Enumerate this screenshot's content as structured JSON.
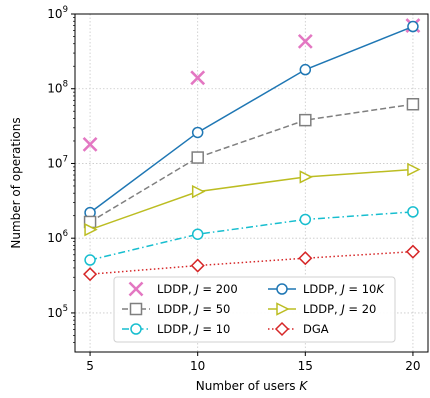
{
  "chart_data": {
    "type": "line",
    "xlabel_prefix": "Number of users ",
    "xlabel_var": "K",
    "ylabel": "Number of operations",
    "x": [
      5,
      10,
      15,
      20
    ],
    "x_ticks": [
      5,
      10,
      15,
      20
    ],
    "xlim": [
      4.3,
      20.7
    ],
    "y_scale": "log",
    "ylim": [
      30000,
      1000000000
    ],
    "y_ticks": [
      {
        "value": 100000,
        "base": "10",
        "exp": "5"
      },
      {
        "value": 1000000,
        "base": "10",
        "exp": "6"
      },
      {
        "value": 10000000,
        "base": "10",
        "exp": "7"
      },
      {
        "value": 100000000,
        "base": "10",
        "exp": "8"
      },
      {
        "value": 1000000000,
        "base": "10",
        "exp": "9"
      }
    ],
    "grid": true,
    "legend_position": "lower-center",
    "series": [
      {
        "name_prefix": "LDDP, ",
        "name_var": "J",
        "name_suffix": " = 200",
        "key": "lddp-j200",
        "values": [
          18000000,
          140000000,
          430000000,
          700000000
        ],
        "color": "#e377c2",
        "marker": "x",
        "linestyle": "none"
      },
      {
        "name_prefix": "LDDP, ",
        "name_var": "J",
        "name_suffix": " = 10",
        "name_unit": "K",
        "key": "lddp-j10k",
        "values": [
          2200000,
          26000000,
          180000000,
          680000000
        ],
        "color": "#1f77b4",
        "marker": "circle",
        "linestyle": "solid"
      },
      {
        "name_prefix": "LDDP, ",
        "name_var": "J",
        "name_suffix": " = 50",
        "key": "lddp-j50",
        "values": [
          1650000,
          12000000,
          38000000,
          62000000
        ],
        "color": "#7f7f7f",
        "marker": "square",
        "linestyle": "dashed"
      },
      {
        "name_prefix": "LDDP, ",
        "name_var": "J",
        "name_suffix": " = 20",
        "key": "lddp-j20",
        "values": [
          1300000,
          4200000,
          6600000,
          8300000
        ],
        "color": "#bcbd22",
        "marker": "triangle-right",
        "linestyle": "solid"
      },
      {
        "name_prefix": "LDDP, ",
        "name_var": "J",
        "name_suffix": " = 10",
        "key": "lddp-j10",
        "values": [
          510000,
          1130000,
          1780000,
          2250000
        ],
        "color": "#17becf",
        "marker": "circle",
        "linestyle": "dashdot"
      },
      {
        "name_prefix": "DGA",
        "name_var": "",
        "name_suffix": "",
        "key": "dga",
        "values": [
          330000,
          430000,
          540000,
          660000
        ],
        "color": "#d62728",
        "marker": "diamond",
        "linestyle": "dotted"
      }
    ]
  }
}
